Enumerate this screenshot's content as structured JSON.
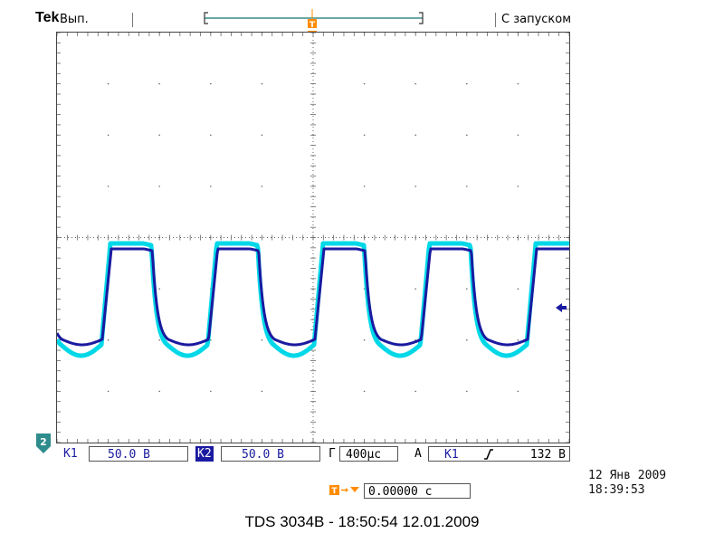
{
  "header": {
    "brand": "Tek",
    "run_state": "Вып.",
    "trigger_state": "С запуском"
  },
  "channels": {
    "ch1": {
      "label": "К1",
      "scale": "50.0 В",
      "color": "#00d8e8"
    },
    "ch2": {
      "label": "К2",
      "scale": "50.0 В",
      "color": "#1a1aa0",
      "ground_marker": "2"
    }
  },
  "timebase": {
    "label": "Г",
    "value": "400µс"
  },
  "trigger": {
    "mode_label": "А",
    "source": "К1",
    "slope_icon": "rising-edge-icon",
    "level": "132 В"
  },
  "trigger_position": {
    "value": "0.00000 с"
  },
  "datetime": {
    "date": "12 Янв  2009",
    "time": "18:39:53"
  },
  "caption": "TDS 3034B - 18:50:54   12.01.2009",
  "colors": {
    "ch1": "#00d8e8",
    "ch2": "#1a1aa0",
    "trigger_marker": "#ff8c00"
  }
}
